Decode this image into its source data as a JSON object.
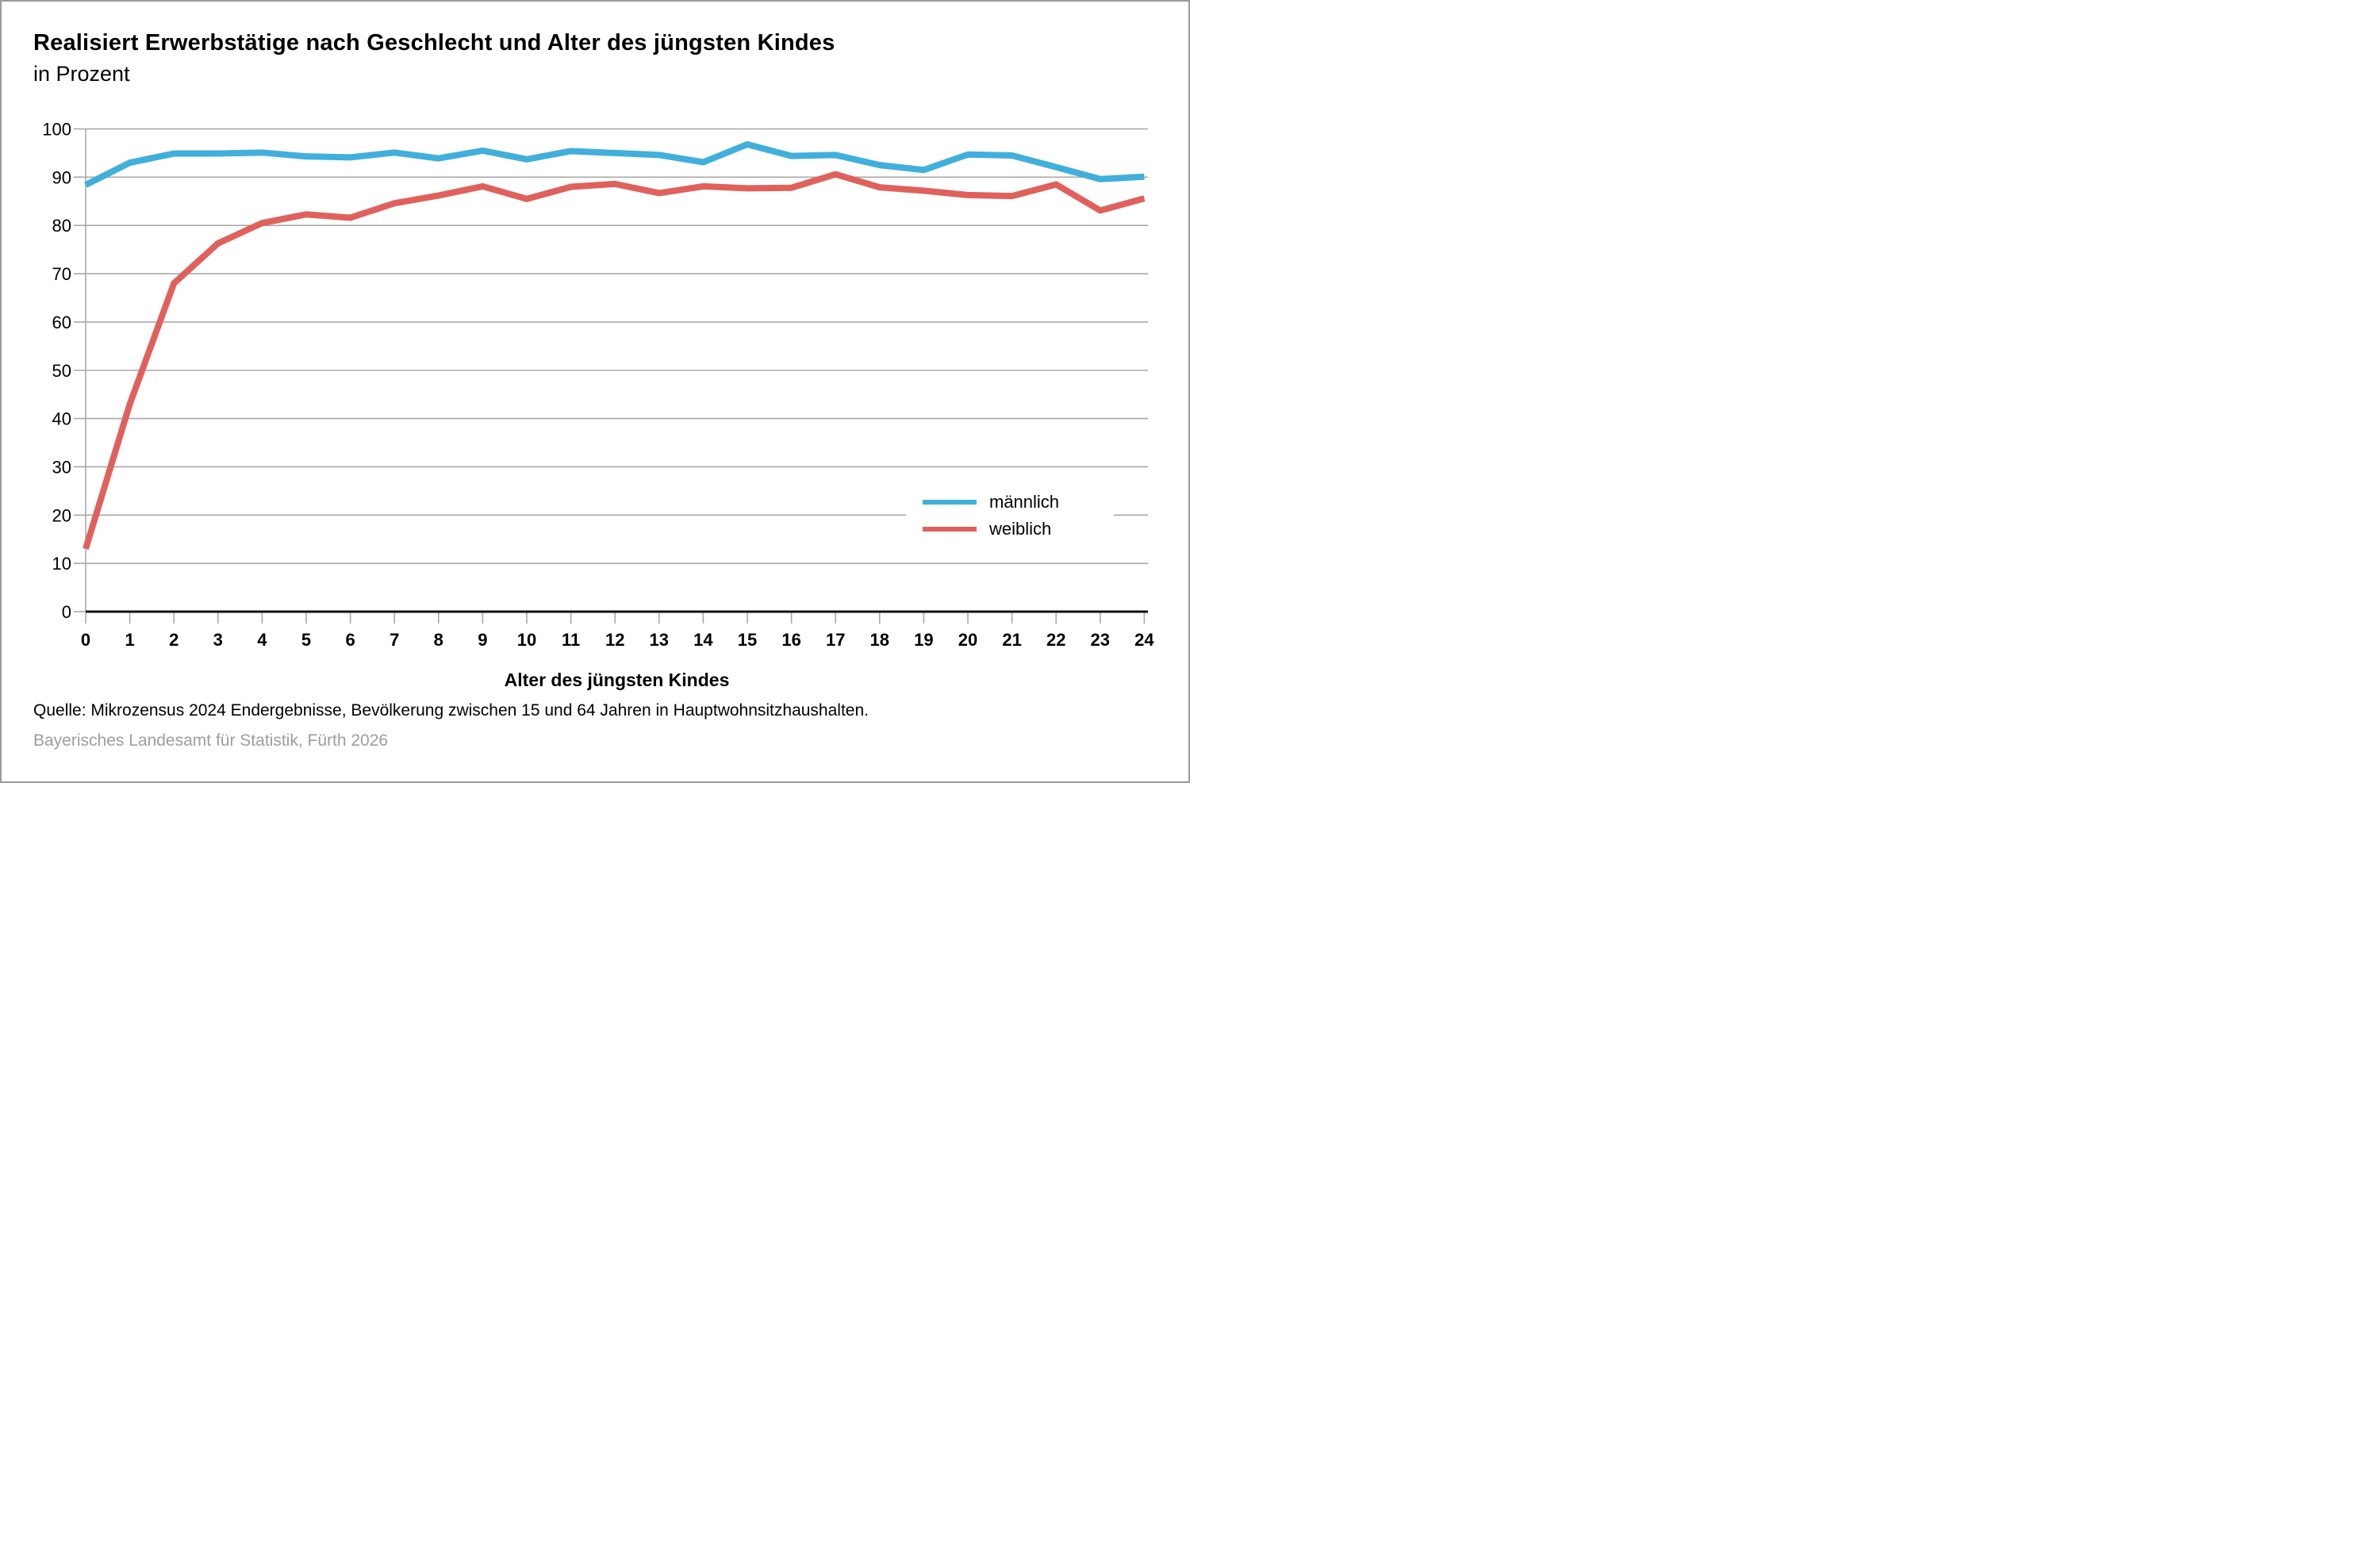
{
  "header": {
    "title": "Realisiert Erwerbstätige nach Geschlecht und Alter des jüngsten Kindes",
    "subtitle": "in Prozent"
  },
  "footer": {
    "source_line": "Quelle: Mikrozensus 2024 Endergebnisse, Bevölkerung zwischen 15 und 64 Jahren in Hauptwohnsitzhaushalten.",
    "publisher_line": "Bayerisches Landesamt für Statistik, Fürth 2026"
  },
  "colors": {
    "maennlich": "#41afdb",
    "weiblich": "#e0615c",
    "gridline": "#a9a9a9",
    "axis": "#111111",
    "frame_border": "#9a9a9a",
    "publisher_text": "#9e9e9e"
  },
  "chart_data": {
    "type": "line",
    "title": "Realisiert Erwerbstätige nach Geschlecht und Alter des jüngsten Kindes",
    "subtitle": "in Prozent",
    "xlabel": "Alter des jüngsten Kindes",
    "ylabel": "",
    "x": [
      0,
      1,
      2,
      3,
      4,
      5,
      6,
      7,
      8,
      9,
      10,
      11,
      12,
      13,
      14,
      15,
      16,
      17,
      18,
      19,
      20,
      21,
      22,
      23,
      24
    ],
    "series": [
      {
        "name": "männlich",
        "color": "#41afdb",
        "values": [
          88.4,
          93.0,
          94.9,
          94.9,
          95.1,
          94.3,
          94.1,
          95.1,
          93.9,
          95.5,
          93.7,
          95.4,
          95.0,
          94.6,
          93.1,
          96.8,
          94.4,
          94.6,
          92.5,
          91.5,
          94.7,
          94.5,
          92.1,
          89.6,
          90.1
        ]
      },
      {
        "name": "weiblich",
        "color": "#e0615c",
        "values": [
          13.0,
          43.0,
          68.0,
          76.3,
          80.5,
          82.3,
          81.6,
          84.6,
          86.2,
          88.1,
          85.5,
          88.0,
          88.6,
          86.7,
          88.1,
          87.7,
          87.8,
          90.6,
          87.9,
          87.2,
          86.3,
          86.1,
          88.5,
          83.1,
          85.6
        ]
      }
    ],
    "ylim": [
      0,
      100
    ],
    "ytick_step": 10,
    "grid": "horizontal-only",
    "legend_position": "inside-right"
  }
}
